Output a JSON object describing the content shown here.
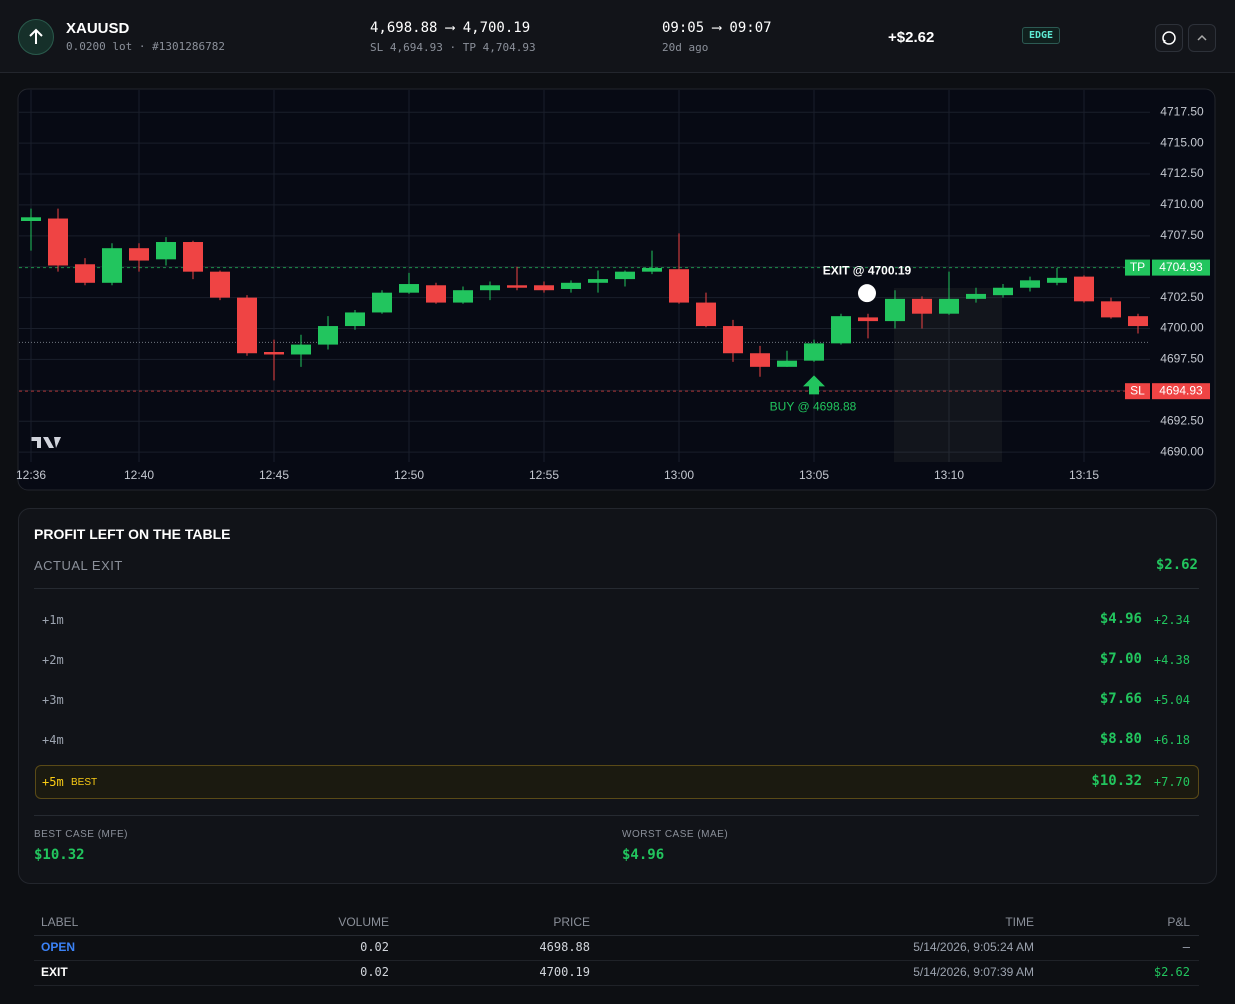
{
  "header": {
    "symbol": "XAUUSD",
    "details": "0.0200 lot · #1301286782",
    "prices": "4,698.88 ⟶ 4,700.19",
    "levels": "SL 4,694.93 · TP 4,704.93",
    "times": "09:05 ⟶ 09:07",
    "age": "20d ago",
    "pnl": "+$2.62",
    "badge": "EDGE"
  },
  "chart_data": {
    "type": "candlestick",
    "grid": true,
    "up_color": "#22c55e",
    "down_color": "#ef4444",
    "categories": [
      "12:36",
      null,
      null,
      null,
      "12:40",
      null,
      null,
      null,
      null,
      "12:45",
      null,
      null,
      null,
      null,
      "12:50",
      null,
      null,
      null,
      null,
      "12:55",
      null,
      null,
      null,
      null,
      "13:00",
      null,
      null,
      null,
      null,
      "13:05",
      null,
      null,
      null,
      null,
      "13:10",
      null,
      null,
      null,
      null,
      "13:15",
      null,
      null
    ],
    "open": [
      4708.7,
      4708.9,
      4705.2,
      4703.7,
      4706.5,
      4705.6,
      4707.0,
      4704.6,
      4702.5,
      4698.1,
      4697.9,
      4698.7,
      4700.2,
      4701.3,
      4702.9,
      4703.5,
      4702.1,
      4703.1,
      4703.5,
      4703.5,
      4703.2,
      4703.7,
      4704.0,
      4704.6,
      4704.8,
      4702.1,
      4700.2,
      4698.0,
      4696.9,
      4697.4,
      4698.8,
      4700.9,
      4700.6,
      4702.4,
      4701.2,
      4702.4,
      4702.7,
      4703.3,
      4703.7,
      4704.2,
      4702.2,
      4701.0
    ],
    "high": [
      4709.7,
      4709.7,
      4705.7,
      4706.9,
      4706.9,
      4707.4,
      4707.1,
      4704.7,
      4702.7,
      4699.1,
      4699.5,
      4701.0,
      4701.5,
      4703.1,
      4704.5,
      4703.7,
      4703.4,
      4703.8,
      4705.0,
      4703.8,
      4703.9,
      4704.7,
      4704.7,
      4706.3,
      4707.7,
      4702.9,
      4700.7,
      4698.6,
      4698.2,
      4699.1,
      4701.2,
      4701.2,
      4703.1,
      4702.6,
      4704.6,
      4703.3,
      4703.6,
      4704.2,
      4704.9,
      4704.3,
      4702.5,
      4701.2
    ],
    "low": [
      4706.3,
      4704.6,
      4703.5,
      4703.5,
      4704.6,
      4705.1,
      4704.0,
      4702.3,
      4697.8,
      4695.8,
      4696.9,
      4698.3,
      4699.9,
      4701.2,
      4702.8,
      4702.0,
      4702.0,
      4702.3,
      4703.1,
      4702.9,
      4702.9,
      4702.9,
      4703.4,
      4704.4,
      4702.0,
      4700.1,
      4697.3,
      4696.1,
      4696.9,
      4697.3,
      4698.7,
      4699.2,
      4700.0,
      4700.0,
      4701.1,
      4702.1,
      4702.5,
      4703.0,
      4703.5,
      4702.1,
      4700.8,
      4699.6
    ],
    "close": [
      4709.0,
      4705.1,
      4703.7,
      4706.5,
      4705.5,
      4707.0,
      4704.6,
      4702.5,
      4698.0,
      4697.9,
      4698.7,
      4700.2,
      4701.3,
      4702.9,
      4703.6,
      4702.1,
      4703.1,
      4703.5,
      4703.3,
      4703.1,
      4703.7,
      4704.0,
      4704.6,
      4704.9,
      4702.1,
      4700.2,
      4698.0,
      4696.9,
      4697.4,
      4698.8,
      4701.0,
      4700.6,
      4702.4,
      4701.2,
      4702.4,
      4702.8,
      4703.3,
      4703.9,
      4704.1,
      4702.2,
      4700.9,
      4700.2
    ],
    "ylim": [
      4689.2,
      4719.3
    ],
    "yticks": [
      {
        "value": 4690,
        "label": "4690.00"
      },
      {
        "value": 4692.5,
        "label": "4692.50"
      },
      {
        "value": 4695,
        "label": "4695.00"
      },
      {
        "value": 4697.5,
        "label": "4697.50"
      },
      {
        "value": 4700,
        "label": "4700.00"
      },
      {
        "value": 4702.5,
        "label": "4702.50"
      },
      {
        "value": 4705,
        "label": "4705.00"
      },
      {
        "value": 4707.5,
        "label": "4707.50"
      },
      {
        "value": 4710,
        "label": "4710.00"
      },
      {
        "value": 4712.5,
        "label": "4712.50"
      },
      {
        "value": 4715,
        "label": "4715.00"
      },
      {
        "value": 4717.5,
        "label": "4717.50"
      }
    ],
    "levels": [
      {
        "name": "TP",
        "value": 4704.93,
        "color": "#22c55e"
      },
      {
        "name": "SL",
        "value": 4694.93,
        "color": "#ef4444"
      }
    ],
    "entry": {
      "value": 4698.88,
      "label": "BUY @ 4698.88"
    },
    "exit": {
      "value": 4700.19,
      "label": "EXIT @ 4700.19"
    }
  },
  "profit": {
    "title": "PROFIT LEFT ON THE TABLE",
    "actual_label": "ACTUAL EXIT",
    "actual_value": "$2.62",
    "rows": [
      {
        "label": "+1m",
        "value": "$4.96",
        "delta": "+2.34"
      },
      {
        "label": "+2m",
        "value": "$7.00",
        "delta": "+4.38"
      },
      {
        "label": "+3m",
        "value": "$7.66",
        "delta": "+5.04"
      },
      {
        "label": "+4m",
        "value": "$8.80",
        "delta": "+6.18"
      },
      {
        "label": "+5m",
        "tag": "BEST",
        "value": "$10.32",
        "delta": "+7.70"
      }
    ],
    "best_label": "BEST CASE (MFE)",
    "best_value": "$10.32",
    "worst_label": "WORST CASE (MAE)",
    "worst_value": "$4.96"
  },
  "trades": {
    "columns": [
      "LABEL",
      "VOLUME",
      "PRICE",
      "TIME",
      "P&L"
    ],
    "rows": [
      [
        "OPEN",
        "0.02",
        "4698.88",
        "5/14/2026, 9:05:24 AM",
        "–"
      ],
      [
        "EXIT",
        "0.02",
        "4700.19",
        "5/14/2026, 9:07:39 AM",
        "$2.62"
      ]
    ]
  }
}
